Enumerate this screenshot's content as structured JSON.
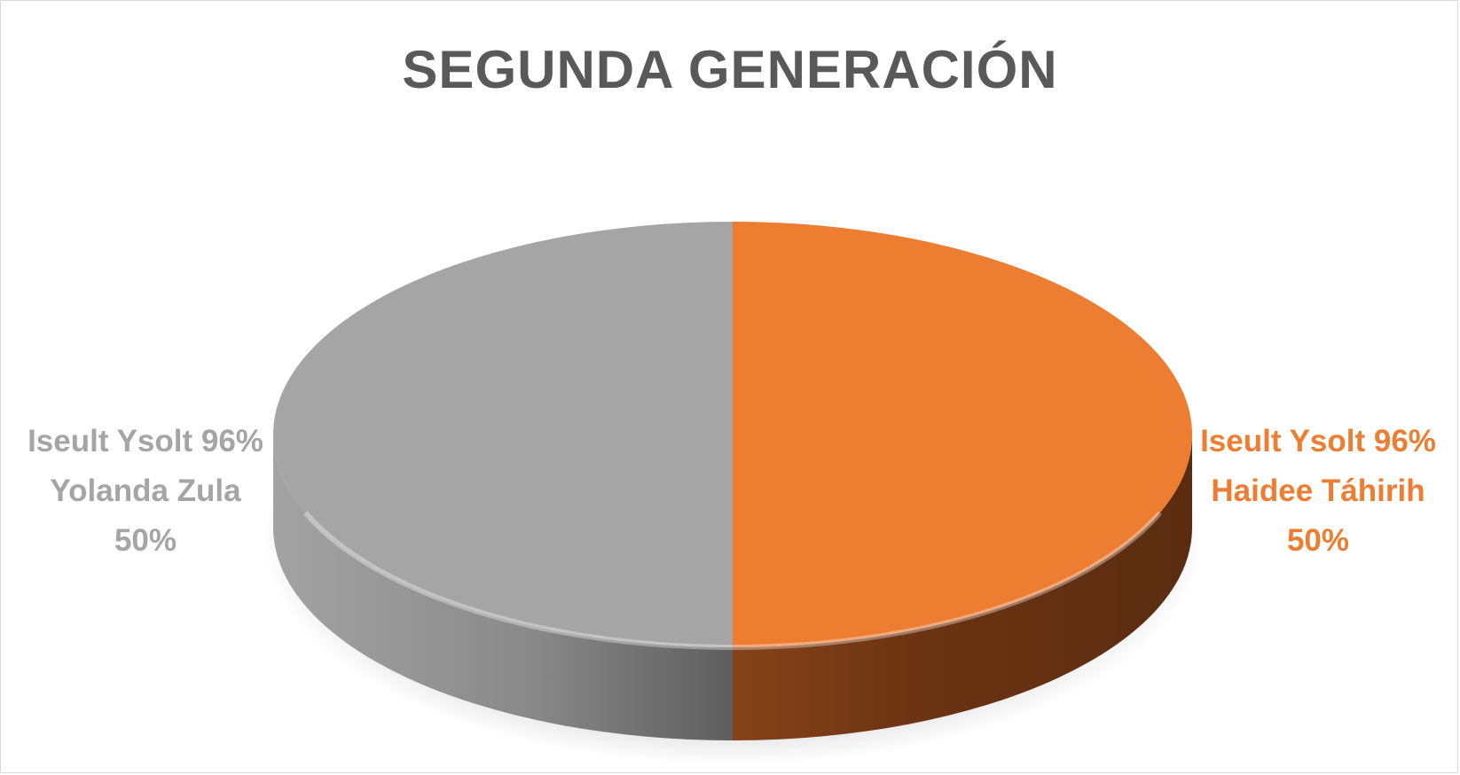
{
  "chart_data": {
    "type": "pie",
    "title": "SEGUNDA GENERACIÓN",
    "slices": [
      {
        "name": "Iseult Ysolt 96% Haidee Táhirih",
        "line1": "Iseult Ysolt 96%",
        "line2": "Haidee Táhirih",
        "value": 50,
        "label": "50%",
        "color": "#ed7d31",
        "side_color": "#7a3a12"
      },
      {
        "name": "Iseult Ysolt 96% Yolanda Zula",
        "line1": "Iseult Ysolt 96%",
        "line2": "Yolanda Zula",
        "value": 50,
        "label": "50%",
        "color": "#a5a5a5",
        "side_color": "#6e6e6e"
      }
    ],
    "style": "3d"
  }
}
